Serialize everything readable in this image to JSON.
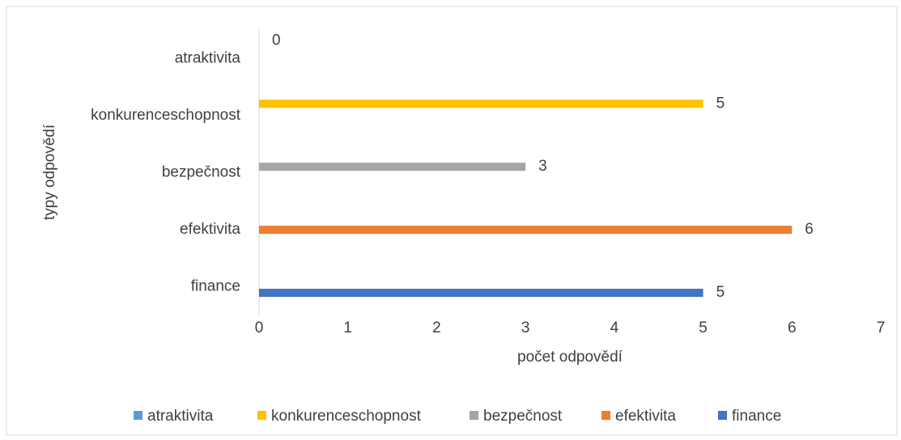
{
  "chart_data": {
    "type": "bar",
    "orientation": "horizontal",
    "xlabel": "počet odpovědí",
    "ylabel": "typy odpovědí",
    "categories": [
      "finance",
      "efektivita",
      "bezpečnost",
      "konkurenceschopnost",
      "atraktivita"
    ],
    "series": [
      {
        "name": "atraktivita",
        "color": "#5b9bd5",
        "values": [
          null,
          null,
          null,
          null,
          0
        ]
      },
      {
        "name": "konkurenceschopnost",
        "color": "#ffc000",
        "values": [
          null,
          null,
          null,
          5,
          null
        ]
      },
      {
        "name": "bezpečnost",
        "color": "#a5a5a5",
        "values": [
          null,
          null,
          3,
          null,
          null
        ]
      },
      {
        "name": "efektivita",
        "color": "#ed7d31",
        "values": [
          null,
          6,
          null,
          null,
          null
        ]
      },
      {
        "name": "finance",
        "color": "#4472c4",
        "values": [
          5,
          null,
          null,
          null,
          null
        ]
      }
    ],
    "xlim": [
      0,
      7
    ],
    "xticks": [
      0,
      1,
      2,
      3,
      4,
      5,
      6,
      7
    ],
    "legend": "bottom"
  }
}
